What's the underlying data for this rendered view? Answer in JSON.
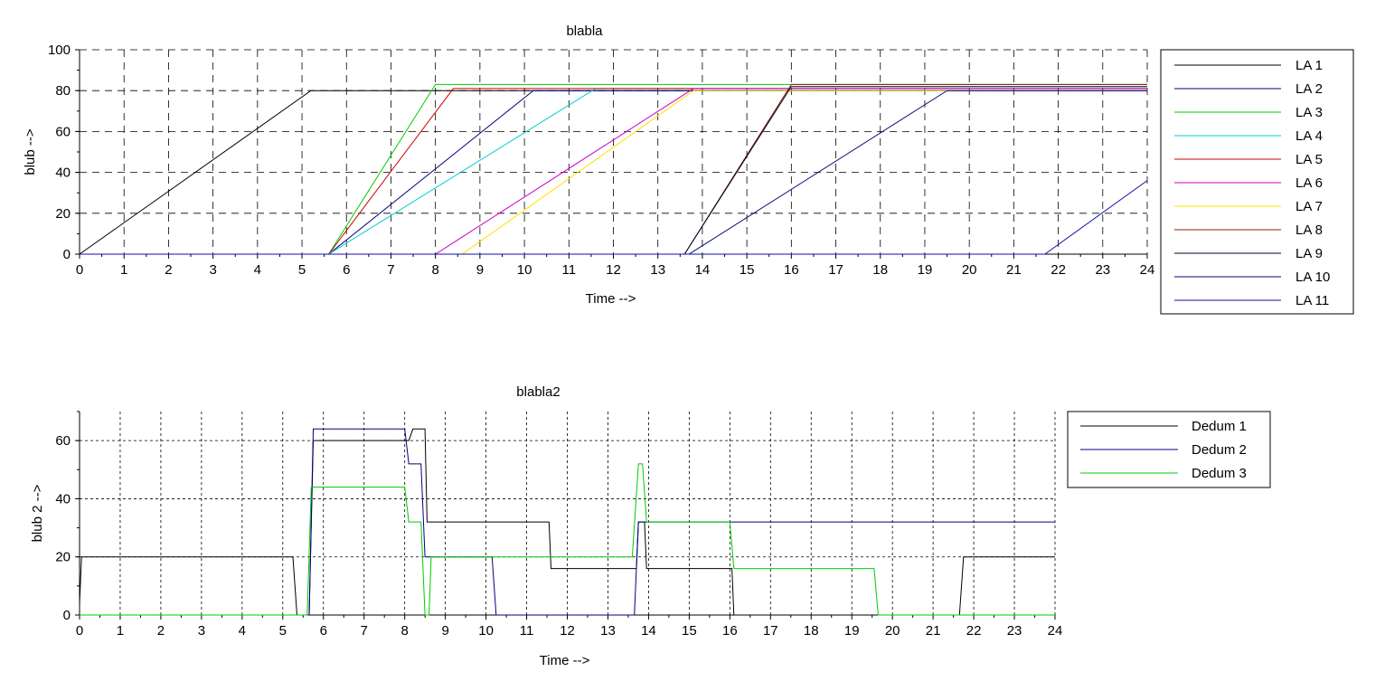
{
  "chart_data": [
    {
      "type": "line",
      "title": "blabla",
      "xlabel": "Time -->",
      "ylabel": "blub -->",
      "xlim": [
        0,
        24
      ],
      "ylim": [
        0,
        100
      ],
      "xticks": [
        "0",
        "1",
        "2",
        "3",
        "4",
        "5",
        "6",
        "7",
        "8",
        "9",
        "10",
        "11",
        "12",
        "13",
        "14",
        "15",
        "16",
        "17",
        "18",
        "19",
        "20",
        "21",
        "22",
        "23",
        "24"
      ],
      "yticks": [
        "0",
        "20",
        "40",
        "60",
        "80",
        "100"
      ],
      "grid": true,
      "legend_position": "right",
      "series": [
        {
          "name": "LA 1",
          "color": "#000000",
          "x": [
            0,
            5.2,
            24
          ],
          "y": [
            0,
            80,
            80
          ]
        },
        {
          "name": "LA 2",
          "color": "#000080",
          "x": [
            0,
            5.6,
            10.2,
            24
          ],
          "y": [
            0,
            0,
            80,
            80
          ]
        },
        {
          "name": "LA 3",
          "color": "#00cc00",
          "x": [
            0,
            5.6,
            8.0,
            24
          ],
          "y": [
            0,
            0,
            83,
            83
          ]
        },
        {
          "name": "LA 4",
          "color": "#00cccc",
          "x": [
            0,
            5.6,
            11.6,
            24
          ],
          "y": [
            0,
            0,
            81,
            81
          ]
        },
        {
          "name": "LA 5",
          "color": "#cc0000",
          "x": [
            0,
            5.6,
            8.4,
            24
          ],
          "y": [
            0,
            0,
            81,
            81
          ]
        },
        {
          "name": "LA 6",
          "color": "#cc00cc",
          "x": [
            0,
            8.0,
            13.8,
            24
          ],
          "y": [
            0,
            0,
            81,
            81
          ]
        },
        {
          "name": "LA 7",
          "color": "#ffe000",
          "x": [
            0,
            8.6,
            13.8,
            24
          ],
          "y": [
            0,
            0,
            80,
            80
          ]
        },
        {
          "name": "LA 8",
          "color": "#882200",
          "x": [
            0,
            13.6,
            16.0,
            24
          ],
          "y": [
            0,
            0,
            83,
            83
          ]
        },
        {
          "name": "LA 9",
          "color": "#00002a",
          "x": [
            0,
            13.6,
            16.0,
            24
          ],
          "y": [
            0,
            0,
            82,
            82
          ]
        },
        {
          "name": "LA 10",
          "color": "#0a0a80",
          "x": [
            0,
            13.7,
            19.5,
            24
          ],
          "y": [
            0,
            0,
            80,
            80
          ]
        },
        {
          "name": "LA 11",
          "color": "#1010aa",
          "x": [
            0,
            21.7,
            24
          ],
          "y": [
            0,
            0,
            36
          ]
        }
      ]
    },
    {
      "type": "line",
      "title": "blabla2",
      "xlabel": "Time -->",
      "ylabel": "blub 2 -->",
      "xlim": [
        0,
        24
      ],
      "ylim": [
        0,
        70
      ],
      "xticks": [
        "0",
        "1",
        "2",
        "3",
        "4",
        "5",
        "6",
        "7",
        "8",
        "9",
        "10",
        "11",
        "12",
        "13",
        "14",
        "15",
        "16",
        "17",
        "18",
        "19",
        "20",
        "21",
        "22",
        "23",
        "24"
      ],
      "yticks": [
        "0",
        "20",
        "40",
        "60"
      ],
      "grid": true,
      "legend_position": "right",
      "series": [
        {
          "name": "Dedum 1",
          "color": "#000000",
          "x": [
            0,
            0.05,
            5.25,
            5.35,
            5.65,
            5.75,
            8.1,
            8.2,
            8.5,
            8.55,
            11.55,
            11.6,
            13.7,
            13.75,
            13.9,
            13.95,
            16.05,
            16.1,
            21.65,
            21.75,
            24
          ],
          "y": [
            4,
            20,
            20,
            0,
            0,
            60,
            60,
            64,
            64,
            32,
            32,
            16,
            16,
            32,
            32,
            16,
            16,
            0,
            0,
            20,
            20
          ]
        },
        {
          "name": "Dedum 2",
          "color": "#000080",
          "x": [
            0,
            5.65,
            5.75,
            8.0,
            8.1,
            8.4,
            8.5,
            8.55,
            10.15,
            10.25,
            13.65,
            13.75,
            24
          ],
          "y": [
            0,
            0,
            64,
            64,
            52,
            52,
            20,
            20,
            20,
            0,
            0,
            32,
            32
          ]
        },
        {
          "name": "Dedum 3",
          "color": "#00cc00",
          "x": [
            0,
            5.6,
            5.7,
            8.0,
            8.1,
            8.4,
            8.5,
            8.6,
            8.65,
            13.6,
            13.75,
            13.85,
            13.95,
            16.0,
            16.1,
            19.55,
            19.65,
            24
          ],
          "y": [
            0,
            0,
            44,
            44,
            32,
            32,
            0,
            0,
            20,
            20,
            52,
            52,
            32,
            32,
            16,
            16,
            0,
            0
          ]
        }
      ]
    }
  ]
}
